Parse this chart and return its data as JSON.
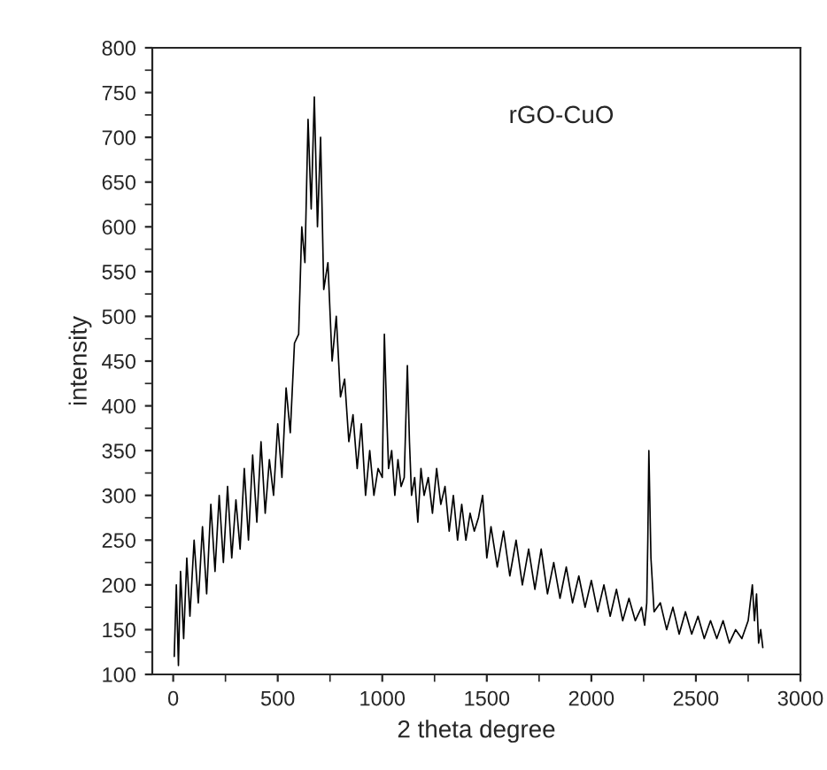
{
  "chart_data": {
    "type": "line",
    "xlabel": "2 theta degree",
    "ylabel": "intensity",
    "annotations": [
      "rGO-CuO"
    ],
    "x": [
      5,
      15,
      25,
      35,
      50,
      65,
      80,
      100,
      120,
      140,
      160,
      180,
      200,
      220,
      240,
      260,
      280,
      300,
      320,
      340,
      360,
      380,
      400,
      420,
      440,
      460,
      480,
      500,
      520,
      540,
      560,
      580,
      600,
      615,
      630,
      645,
      660,
      675,
      690,
      705,
      720,
      740,
      760,
      780,
      800,
      820,
      840,
      860,
      880,
      900,
      920,
      940,
      960,
      980,
      1000,
      1010,
      1020,
      1030,
      1045,
      1060,
      1075,
      1090,
      1105,
      1120,
      1130,
      1140,
      1155,
      1170,
      1185,
      1200,
      1220,
      1240,
      1260,
      1280,
      1300,
      1320,
      1340,
      1360,
      1380,
      1400,
      1420,
      1440,
      1460,
      1480,
      1500,
      1520,
      1550,
      1580,
      1610,
      1640,
      1670,
      1700,
      1730,
      1760,
      1790,
      1820,
      1850,
      1880,
      1910,
      1940,
      1970,
      2000,
      2030,
      2060,
      2090,
      2120,
      2150,
      2180,
      2210,
      2240,
      2255,
      2265,
      2270,
      2275,
      2285,
      2300,
      2330,
      2360,
      2390,
      2420,
      2450,
      2480,
      2510,
      2540,
      2570,
      2600,
      2630,
      2660,
      2690,
      2720,
      2750,
      2770,
      2780,
      2790,
      2800,
      2810,
      2820
    ],
    "values": [
      120,
      200,
      110,
      215,
      140,
      230,
      165,
      250,
      180,
      265,
      190,
      290,
      215,
      300,
      225,
      310,
      230,
      295,
      240,
      330,
      250,
      345,
      270,
      360,
      280,
      340,
      300,
      380,
      320,
      420,
      370,
      470,
      480,
      600,
      560,
      720,
      620,
      745,
      600,
      700,
      530,
      560,
      450,
      500,
      410,
      430,
      360,
      390,
      330,
      380,
      300,
      350,
      300,
      330,
      320,
      480,
      400,
      330,
      350,
      300,
      340,
      310,
      320,
      445,
      360,
      300,
      320,
      270,
      330,
      300,
      320,
      280,
      330,
      290,
      310,
      260,
      300,
      250,
      290,
      250,
      280,
      260,
      275,
      300,
      230,
      265,
      220,
      260,
      210,
      250,
      200,
      240,
      195,
      240,
      190,
      225,
      185,
      220,
      180,
      210,
      175,
      205,
      170,
      200,
      165,
      195,
      160,
      185,
      160,
      175,
      155,
      180,
      250,
      350,
      230,
      170,
      180,
      150,
      175,
      145,
      170,
      145,
      165,
      140,
      160,
      140,
      160,
      135,
      150,
      140,
      160,
      200,
      160,
      190,
      135,
      150,
      130
    ],
    "color": "#000000",
    "xlim": [
      -100,
      3000
    ],
    "ylim": [
      100,
      800
    ],
    "xticks": [
      0,
      500,
      1000,
      1500,
      2000,
      2500,
      3000
    ],
    "yticks": [
      100,
      150,
      200,
      250,
      300,
      350,
      400,
      450,
      500,
      550,
      600,
      650,
      700,
      750,
      800
    ],
    "grid": false,
    "legend": false,
    "marker": "none",
    "line_style": "solid"
  }
}
